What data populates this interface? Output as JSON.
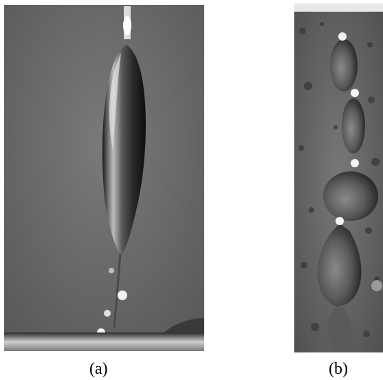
{
  "figure": {
    "panels": [
      {
        "id": "a",
        "caption": "(a)",
        "description": "drop-photo-elongated-pendant"
      },
      {
        "id": "b",
        "caption": "(b)",
        "description": "drop-photo-chain-of-drops"
      }
    ]
  }
}
